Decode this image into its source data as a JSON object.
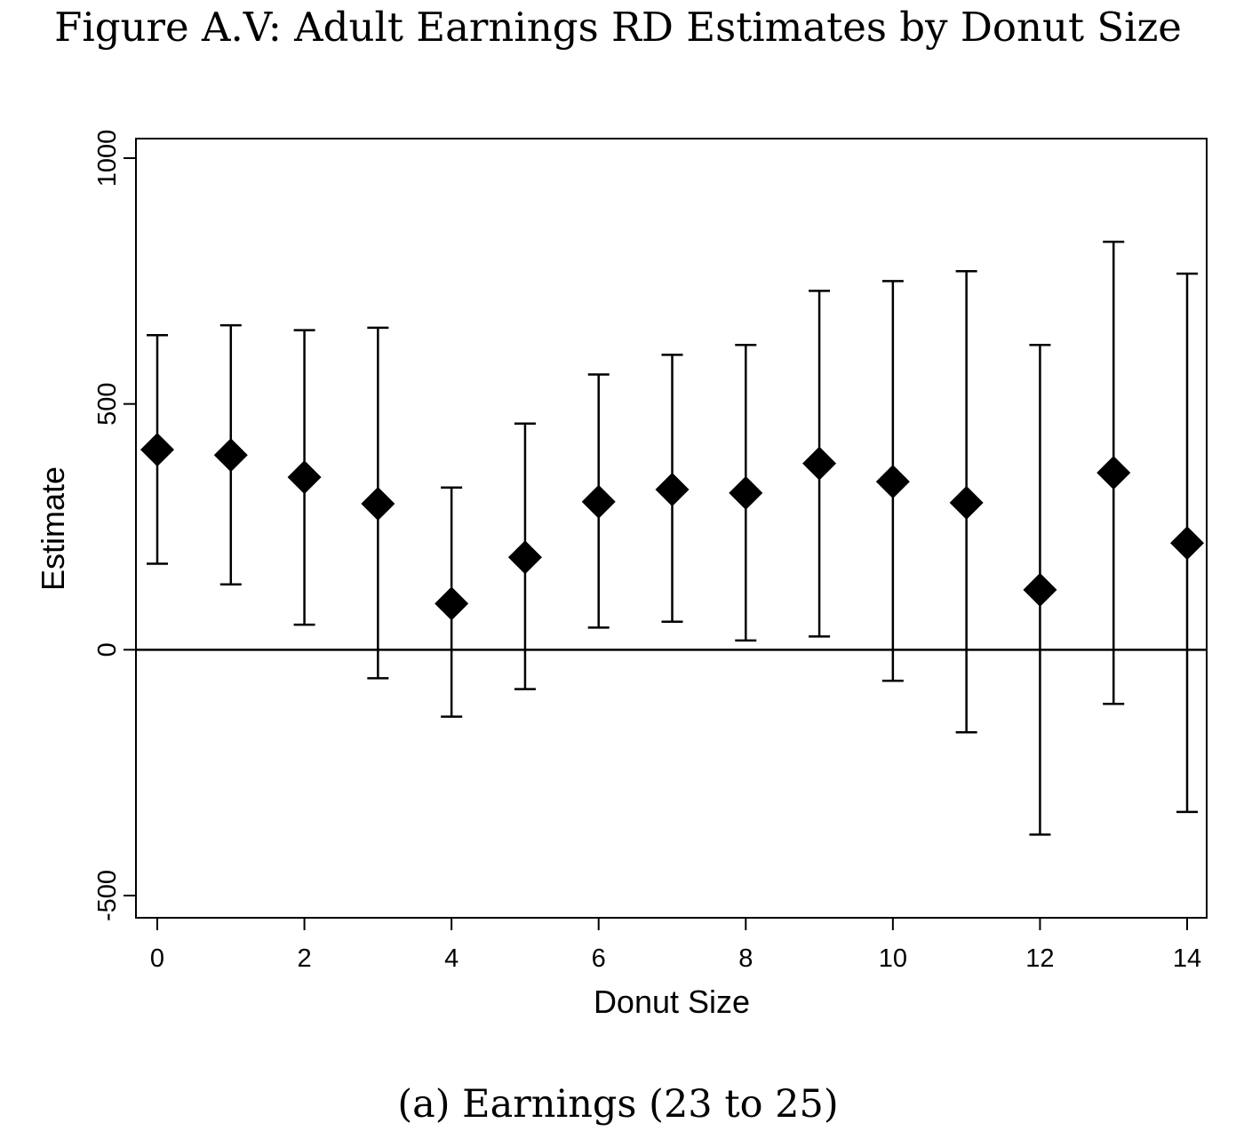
{
  "figure": {
    "title": "Figure A.V: Adult Earnings RD Estimates by Donut Size",
    "caption": "(a) Earnings (23 to 25)"
  },
  "chart_data": {
    "type": "scatter",
    "title": "",
    "xlabel": "Donut Size",
    "ylabel": "Estimate",
    "xlim": [
      0,
      14
    ],
    "ylim": [
      -500,
      1000
    ],
    "x_ticks": [
      0,
      2,
      4,
      6,
      8,
      10,
      12,
      14
    ],
    "y_ticks": [
      -500,
      0,
      500,
      1000
    ],
    "reference_line_y": 0,
    "grid": false,
    "legend": "none",
    "marker": "diamond",
    "color": "#000000",
    "x": [
      0,
      1,
      2,
      3,
      4,
      5,
      6,
      7,
      8,
      9,
      10,
      11,
      12,
      13,
      14
    ],
    "estimate": [
      407,
      396,
      351,
      297,
      94,
      188,
      301,
      326,
      319,
      379,
      342,
      299,
      122,
      360,
      217
    ],
    "ci_upper": [
      640,
      660,
      650,
      655,
      330,
      460,
      560,
      600,
      620,
      730,
      750,
      770,
      620,
      830,
      765
    ],
    "ci_lower": [
      175,
      133,
      51,
      -58,
      -136,
      -80,
      45,
      57,
      19,
      27,
      -63,
      -168,
      -376,
      -110,
      -330
    ]
  }
}
